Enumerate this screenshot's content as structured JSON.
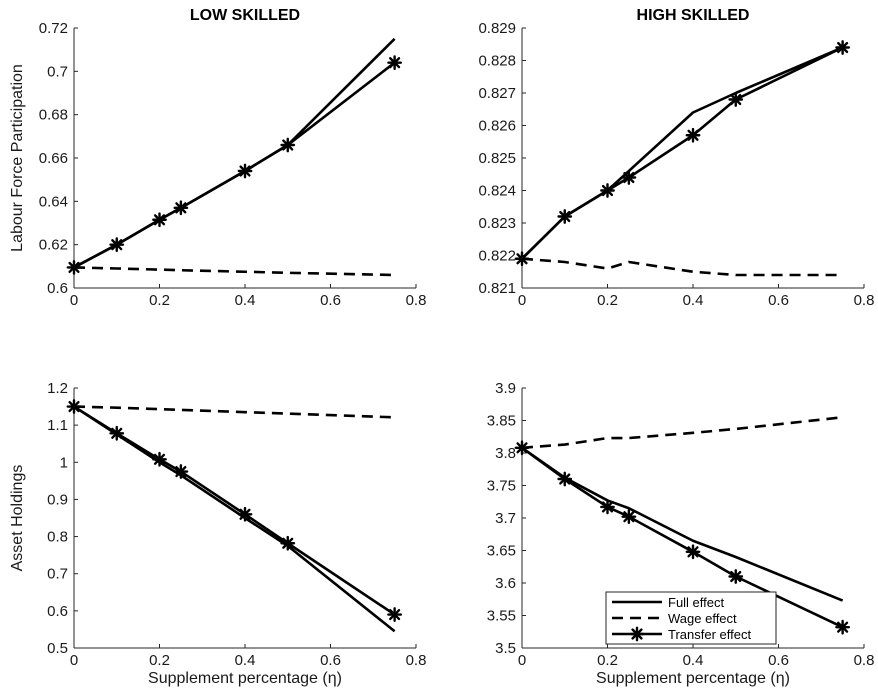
{
  "colors": {
    "line": "#000000",
    "axis": "#262626",
    "background": "#ffffff"
  },
  "legend": {
    "placement": "lower-right of bottom-right panel",
    "entries": [
      {
        "label": "Full effect",
        "style": "solid"
      },
      {
        "label": "Wage effect",
        "style": "dashed"
      },
      {
        "label": "Transfer effect",
        "style": "solid-asterisk"
      }
    ]
  },
  "chart_data": [
    {
      "type": "line",
      "title": "LOW SKILLED",
      "xlabel": "",
      "ylabel": "Labour Force Participation",
      "xlim": [
        0,
        0.8
      ],
      "ylim": [
        0.6,
        0.72
      ],
      "xticks": [
        "0",
        "0.2",
        "0.4",
        "0.6",
        "0.8"
      ],
      "yticks": [
        "0.6",
        "0.62",
        "0.64",
        "0.66",
        "0.68",
        "0.7",
        "0.72"
      ],
      "grid": false,
      "series": [
        {
          "name": "Full effect",
          "style": "solid",
          "x": [
            0,
            0.1,
            0.2,
            0.25,
            0.4,
            0.5,
            0.75
          ],
          "y": [
            0.6095,
            0.62,
            0.6315,
            0.637,
            0.654,
            0.666,
            0.715
          ]
        },
        {
          "name": "Wage effect",
          "style": "dashed",
          "x": [
            0,
            0.1,
            0.2,
            0.25,
            0.4,
            0.5,
            0.75
          ],
          "y": [
            0.6095,
            0.609,
            0.6085,
            0.6082,
            0.6075,
            0.607,
            0.606
          ]
        },
        {
          "name": "Transfer effect",
          "style": "solid-asterisk",
          "x": [
            0,
            0.1,
            0.2,
            0.25,
            0.4,
            0.5,
            0.75
          ],
          "y": [
            0.6095,
            0.62,
            0.6315,
            0.637,
            0.654,
            0.666,
            0.704
          ]
        }
      ]
    },
    {
      "type": "line",
      "title": "HIGH SKILLED",
      "xlabel": "",
      "ylabel": "",
      "xlim": [
        0,
        0.8
      ],
      "ylim": [
        0.821,
        0.829
      ],
      "xticks": [
        "0",
        "0.2",
        "0.4",
        "0.6",
        "0.8"
      ],
      "yticks": [
        "0.821",
        "0.822",
        "0.823",
        "0.824",
        "0.825",
        "0.826",
        "0.827",
        "0.828",
        "0.829"
      ],
      "grid": false,
      "series": [
        {
          "name": "Full effect",
          "style": "solid",
          "x": [
            0,
            0.1,
            0.2,
            0.25,
            0.4,
            0.5,
            0.75
          ],
          "y": [
            0.8219,
            0.8232,
            0.824,
            0.8246,
            0.8264,
            0.827,
            0.8284
          ]
        },
        {
          "name": "Wage effect",
          "style": "dashed",
          "x": [
            0,
            0.1,
            0.2,
            0.25,
            0.4,
            0.5,
            0.75
          ],
          "y": [
            0.8219,
            0.8218,
            0.8216,
            0.8218,
            0.8215,
            0.8214,
            0.8214
          ]
        },
        {
          "name": "Transfer effect",
          "style": "solid-asterisk",
          "x": [
            0,
            0.1,
            0.2,
            0.25,
            0.4,
            0.5,
            0.75
          ],
          "y": [
            0.8219,
            0.8232,
            0.824,
            0.8244,
            0.8257,
            0.8268,
            0.8284
          ]
        }
      ]
    },
    {
      "type": "line",
      "title": "",
      "xlabel": "Supplement percentage (η)",
      "ylabel": "Asset Holdings",
      "xlim": [
        0,
        0.8
      ],
      "ylim": [
        0.5,
        1.2
      ],
      "xticks": [
        "0",
        "0.2",
        "0.4",
        "0.6",
        "0.8"
      ],
      "yticks": [
        "0.5",
        "0.6",
        "0.7",
        "0.8",
        "0.9",
        "1",
        "1.1",
        "1.2"
      ],
      "grid": false,
      "series": [
        {
          "name": "Full effect",
          "style": "solid",
          "x": [
            0,
            0.1,
            0.2,
            0.25,
            0.4,
            0.5,
            0.75
          ],
          "y": [
            1.15,
            1.075,
            1.0,
            0.965,
            0.85,
            0.775,
            0.545
          ]
        },
        {
          "name": "Wage effect",
          "style": "dashed",
          "x": [
            0,
            0.1,
            0.2,
            0.25,
            0.4,
            0.5,
            0.75
          ],
          "y": [
            1.15,
            1.147,
            1.143,
            1.141,
            1.135,
            1.131,
            1.121
          ]
        },
        {
          "name": "Transfer effect",
          "style": "solid-asterisk",
          "x": [
            0,
            0.1,
            0.2,
            0.25,
            0.4,
            0.5,
            0.75
          ],
          "y": [
            1.15,
            1.078,
            1.008,
            0.975,
            0.86,
            0.782,
            0.59
          ]
        }
      ]
    },
    {
      "type": "line",
      "title": "",
      "xlabel": "Supplement percentage (η)",
      "ylabel": "",
      "xlim": [
        0,
        0.8
      ],
      "ylim": [
        3.5,
        3.9
      ],
      "xticks": [
        "0",
        "0.2",
        "0.4",
        "0.6",
        "0.8"
      ],
      "yticks": [
        "3.5",
        "3.55",
        "3.6",
        "3.65",
        "3.7",
        "3.75",
        "3.8",
        "3.85",
        "3.9"
      ],
      "grid": false,
      "series": [
        {
          "name": "Full effect",
          "style": "solid",
          "x": [
            0,
            0.1,
            0.2,
            0.25,
            0.4,
            0.5,
            0.75
          ],
          "y": [
            3.808,
            3.762,
            3.727,
            3.715,
            3.665,
            3.64,
            3.573
          ]
        },
        {
          "name": "Wage effect",
          "style": "dashed",
          "x": [
            0,
            0.1,
            0.2,
            0.25,
            0.4,
            0.5,
            0.75
          ],
          "y": [
            3.808,
            3.813,
            3.823,
            3.823,
            3.831,
            3.837,
            3.855
          ]
        },
        {
          "name": "Transfer effect",
          "style": "solid-asterisk",
          "x": [
            0,
            0.1,
            0.2,
            0.25,
            0.4,
            0.5,
            0.75
          ],
          "y": [
            3.808,
            3.76,
            3.717,
            3.702,
            3.648,
            3.61,
            3.532
          ]
        }
      ]
    }
  ]
}
